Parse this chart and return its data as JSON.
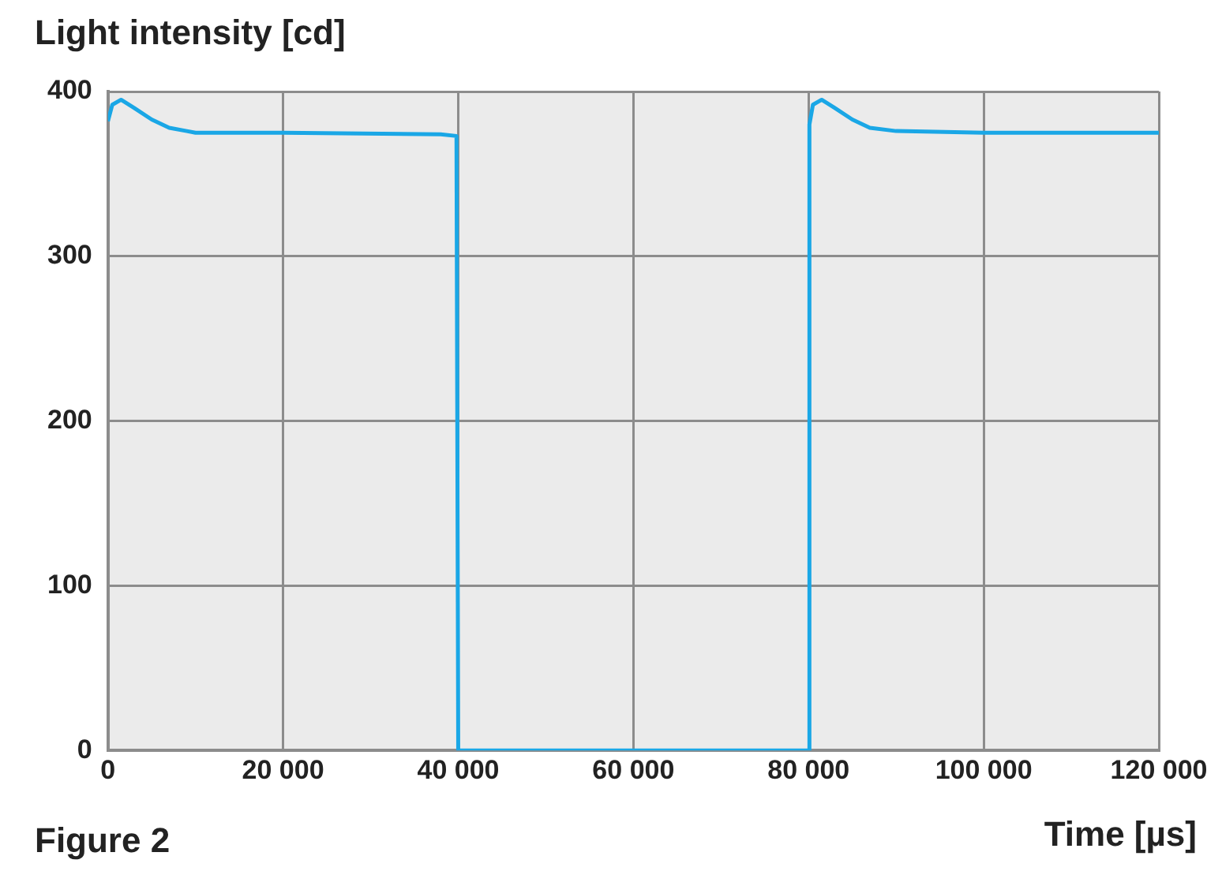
{
  "chart_data": {
    "type": "line",
    "ylabel": "Light intensity [cd]",
    "xlabel": "Time [µs]",
    "annotations": [
      "Figure 2"
    ],
    "x": [
      0,
      500,
      1500,
      3000,
      5000,
      7000,
      9000,
      10000,
      20000,
      38000,
      39800,
      40000,
      80000,
      80100,
      80500,
      81500,
      83000,
      85000,
      87000,
      90000,
      100000,
      120000
    ],
    "series": [
      {
        "color": "#1aa7e6",
        "values": [
          382,
          392,
          395,
          390,
          383,
          378,
          376,
          375,
          375,
          374,
          373,
          0,
          0,
          380,
          392,
          395,
          390,
          383,
          378,
          376,
          375,
          375
        ]
      }
    ],
    "xlim": [
      0,
      120000
    ],
    "xticks": [
      0,
      {
        "value": 20000,
        "label": "20 000"
      },
      {
        "value": 40000,
        "label": "40 000"
      },
      {
        "value": 60000,
        "label": "60 000"
      },
      {
        "value": 80000,
        "label": "80 000"
      },
      {
        "value": 100000,
        "label": "100 000"
      },
      {
        "value": 120000,
        "label": "120 000"
      }
    ],
    "ylim": [
      0,
      400
    ],
    "yticks": [
      0,
      100,
      200,
      300,
      400
    ],
    "grid": true,
    "marker": "none",
    "line_style": "solid",
    "legend": false
  }
}
